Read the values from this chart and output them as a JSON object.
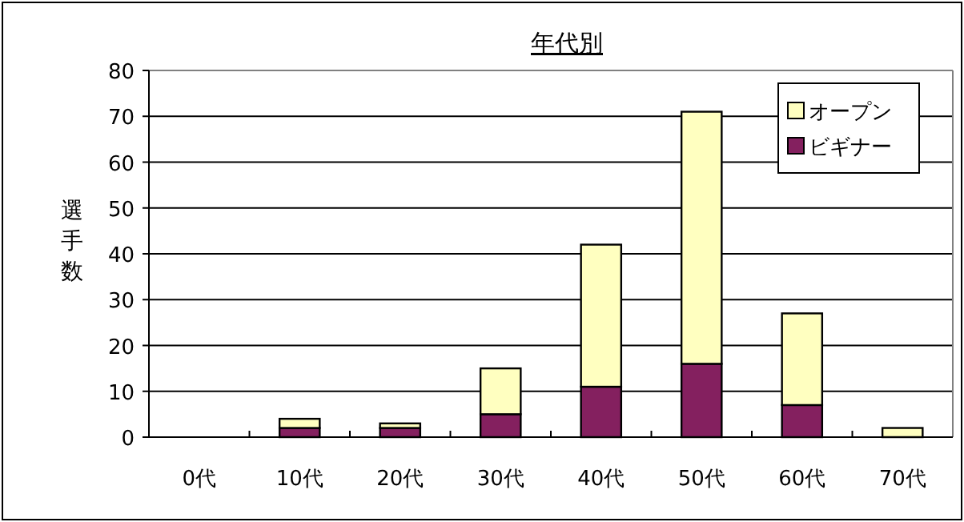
{
  "chart_data": {
    "type": "bar",
    "stacked": true,
    "title": "年代別",
    "ylabel": "選手数",
    "categories": [
      "0代",
      "10代",
      "20代",
      "30代",
      "40代",
      "50代",
      "60代",
      "70代"
    ],
    "series": [
      {
        "name": "ビギナー",
        "color": "#84205f",
        "values": [
          0,
          2,
          2,
          5,
          11,
          16,
          7,
          0
        ]
      },
      {
        "name": "オープン",
        "color": "#ffffc0",
        "values": [
          0,
          2,
          1,
          10,
          31,
          55,
          20,
          2
        ]
      }
    ],
    "ylim": [
      0,
      80
    ],
    "yticks": [
      0,
      10,
      20,
      30,
      40,
      50,
      60,
      70,
      80
    ],
    "grid": "y",
    "legend": "top right"
  }
}
